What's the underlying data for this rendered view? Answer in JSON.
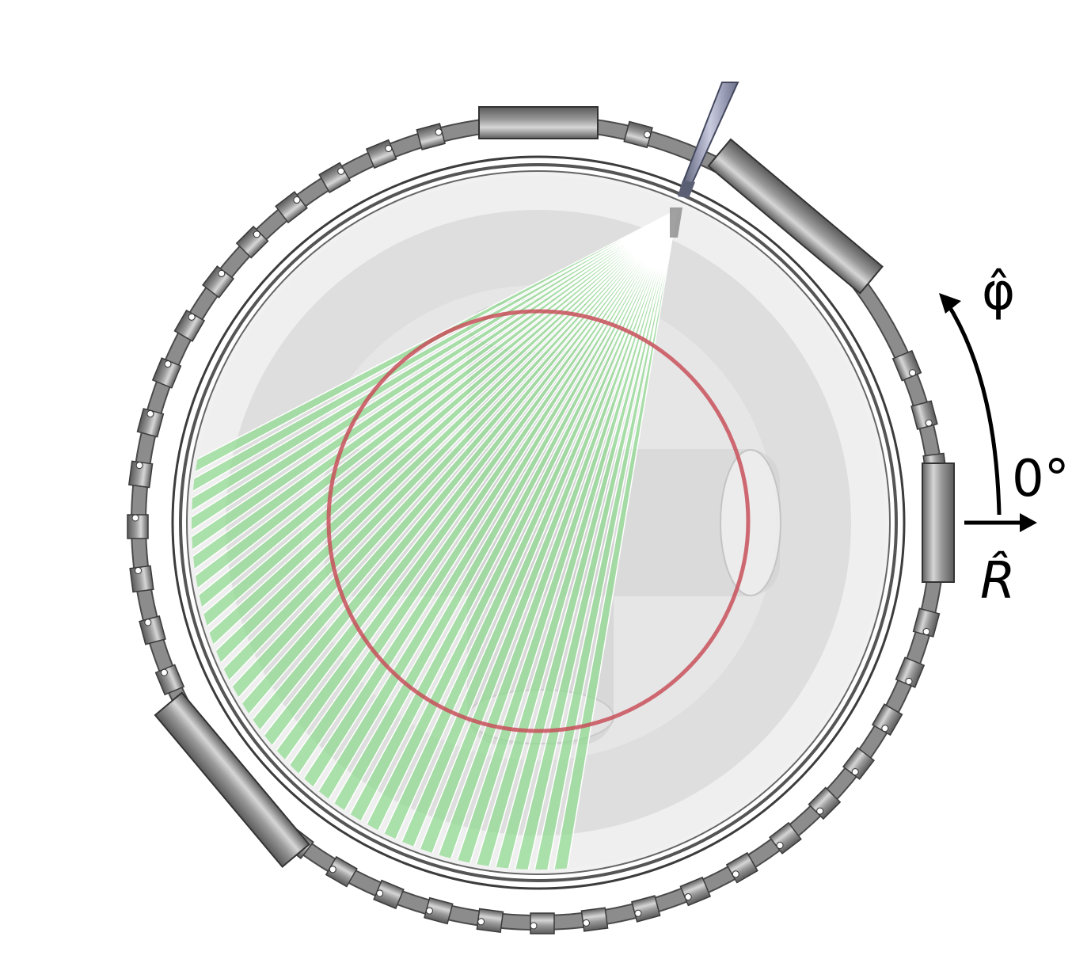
{
  "labels": {
    "phi": "φ̂",
    "angle": "0°",
    "r": "R̂"
  },
  "diagram": {
    "ray_count": 33,
    "colors": {
      "ray_fill": "#8fd98f",
      "ray_edge": "#ffffff",
      "red_ring": "#c8505a",
      "vessel_light": "#ececec",
      "vessel_mid": "#dcdcdc",
      "bracket_dark": "#6e6e6e",
      "bracket_light": "#d8d8d8",
      "probe": "#8a8fa8"
    }
  }
}
